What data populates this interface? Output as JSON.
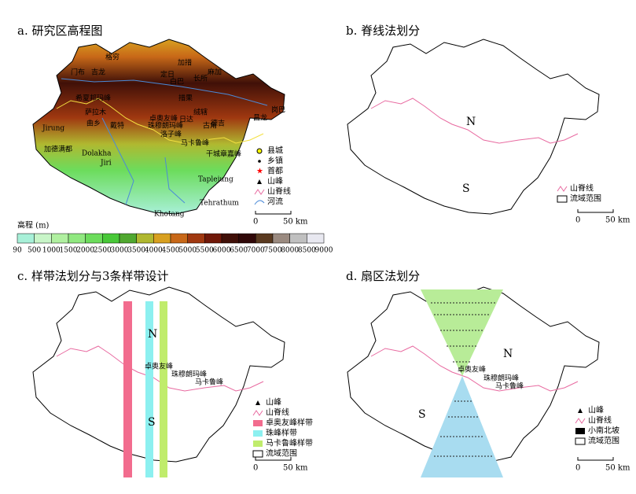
{
  "panels": [
    {
      "title": "a. 研究区高程图",
      "labels": [
        "格穷",
        "门布",
        "吉龙",
        "定日",
        "加措",
        "麻加",
        "白巴",
        "长所",
        "措果",
        "绒辖",
        "岗巴",
        "昌龙",
        "希夏邦玛峰",
        "萨拉木",
        "曲乡",
        "戴特",
        "卓奥友峰",
        "珠穆朗玛峰",
        "日达",
        "古角",
        "德吉",
        "洛子峰",
        "马卡鲁峰",
        "干城章嘉峰",
        "Jirung",
        "加德满都",
        "Dolakha",
        "Jiri",
        "Taplejung",
        "Tehrathum",
        "Khotang"
      ],
      "legend": [
        "县城",
        "乡镇",
        "首都",
        "山峰",
        "山脊线",
        "河流"
      ],
      "scale": [
        "0",
        "50 km"
      ]
    },
    {
      "title": "b. 脊线法划分",
      "labels": [
        "N",
        "S"
      ],
      "legend": [
        "山脊线",
        "流域范围"
      ],
      "scale": [
        "0",
        "50 km"
      ]
    },
    {
      "title": "c. 样带法划分与3条样带设计",
      "labels": [
        "N",
        "S",
        "卓奥友峰",
        "珠穆朗玛峰",
        "马卡鲁峰"
      ],
      "legend": [
        "山峰",
        "山脊线",
        "卓奥友峰样带",
        "珠峰样带",
        "马卡鲁峰样带",
        "流域范围"
      ],
      "scale": [
        "0",
        "50 km"
      ]
    },
    {
      "title": "d. 扇区法划分",
      "labels": [
        "N",
        "S",
        "卓奥友峰",
        "珠穆朗玛峰",
        "马卡鲁峰"
      ],
      "legend": [
        "山峰",
        "山脊线",
        "小南北坡",
        "流域范围"
      ],
      "scale": [
        "0",
        "50 km"
      ]
    }
  ],
  "elevation_legend": {
    "title": "高程 (m)",
    "ticks": [
      90,
      500,
      1000,
      1500,
      2000,
      2500,
      3000,
      3500,
      4000,
      4500,
      5000,
      5500,
      6000,
      6500,
      7000,
      7500,
      8000,
      8500,
      9000
    ],
    "colors": [
      "#a8f0d8",
      "#c8f5c8",
      "#b0f0a0",
      "#90e880",
      "#6cdc5c",
      "#48c838",
      "#50a830",
      "#b0b830",
      "#d8a020",
      "#c86818",
      "#a03810",
      "#701808",
      "#401008",
      "#300808",
      "#5a3a20",
      "#9a8a80",
      "#c0c0c0",
      "#e8e8f0"
    ]
  }
}
